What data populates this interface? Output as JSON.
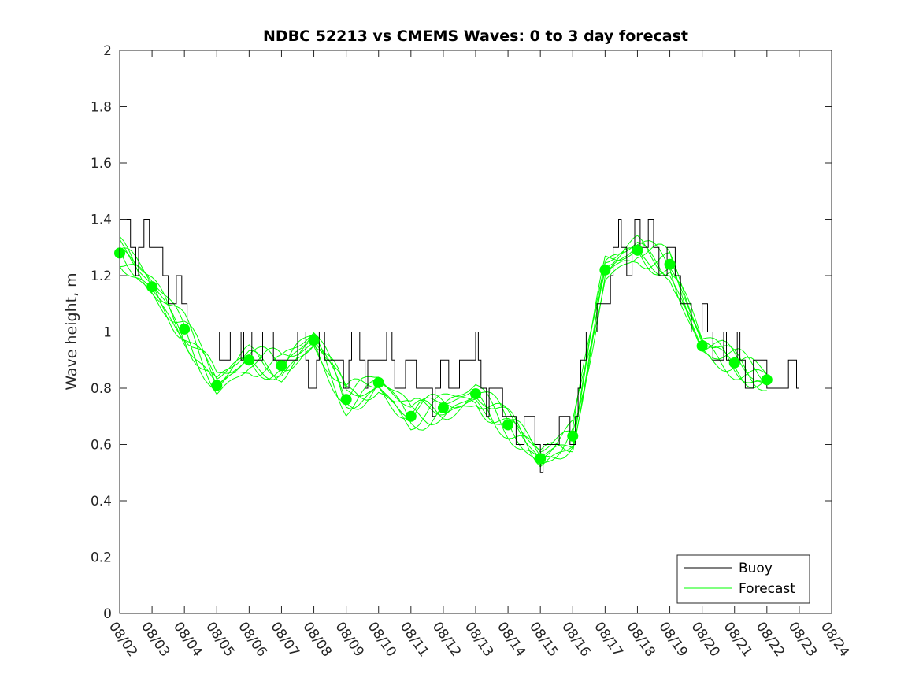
{
  "chart_data": {
    "type": "line",
    "title": "NDBC 52213 vs CMEMS Waves: 0 to 3 day forecast",
    "xlabel": "",
    "ylabel": "Wave height, m",
    "ylim": [
      0,
      2
    ],
    "yticks": [
      0,
      0.2,
      0.4,
      0.6,
      0.8,
      1,
      1.2,
      1.4,
      1.6,
      1.8,
      2
    ],
    "ytick_labels": [
      "0",
      "0.2",
      "0.4",
      "0.6",
      "0.8",
      "1",
      "1.2",
      "1.4",
      "1.6",
      "1.8",
      "2"
    ],
    "xlim": [
      "08/02",
      "08/24"
    ],
    "xtick_labels": [
      "08/02",
      "08/03",
      "08/04",
      "08/05",
      "08/06",
      "08/07",
      "08/08",
      "08/09",
      "08/10",
      "08/11",
      "08/12",
      "08/13",
      "08/14",
      "08/15",
      "08/16",
      "08/17",
      "08/18",
      "08/19",
      "08/20",
      "08/21",
      "08/22",
      "08/23",
      "08/24"
    ],
    "grid": false,
    "legend": {
      "placement": "bottom-right",
      "entries": [
        "Buoy",
        "Forecast"
      ]
    },
    "colors": {
      "buoy": "#000000",
      "forecast": "#00ff00",
      "axis": "#262626"
    },
    "series": [
      {
        "name": "Buoy",
        "x": [
          "08/02",
          "08/03",
          "08/04",
          "08/05",
          "08/06",
          "08/07",
          "08/08",
          "08/09",
          "08/10",
          "08/11",
          "08/12",
          "08/13",
          "08/14",
          "08/15",
          "08/16",
          "08/17",
          "08/18",
          "08/19",
          "08/20",
          "08/21",
          "08/22",
          "08/23"
        ],
        "values": [
          1.35,
          1.3,
          1.05,
          0.95,
          0.95,
          0.95,
          0.9,
          0.9,
          0.9,
          0.85,
          0.8,
          0.9,
          0.7,
          0.6,
          0.7,
          1.2,
          1.35,
          1.25,
          1.0,
          0.9,
          0.85,
          0.8
        ]
      },
      {
        "name": "Forecast",
        "x": [
          "08/02",
          "08/03",
          "08/04",
          "08/05",
          "08/06",
          "08/07",
          "08/08",
          "08/09",
          "08/10",
          "08/11",
          "08/12",
          "08/13",
          "08/14",
          "08/15",
          "08/16",
          "08/17",
          "08/18",
          "08/19",
          "08/20",
          "08/21",
          "08/22"
        ],
        "values": [
          1.28,
          1.16,
          1.01,
          0.81,
          0.9,
          0.88,
          0.97,
          0.76,
          0.82,
          0.7,
          0.73,
          0.78,
          0.67,
          0.55,
          0.63,
          1.22,
          1.29,
          1.24,
          0.95,
          0.89,
          0.83
        ]
      }
    ]
  }
}
